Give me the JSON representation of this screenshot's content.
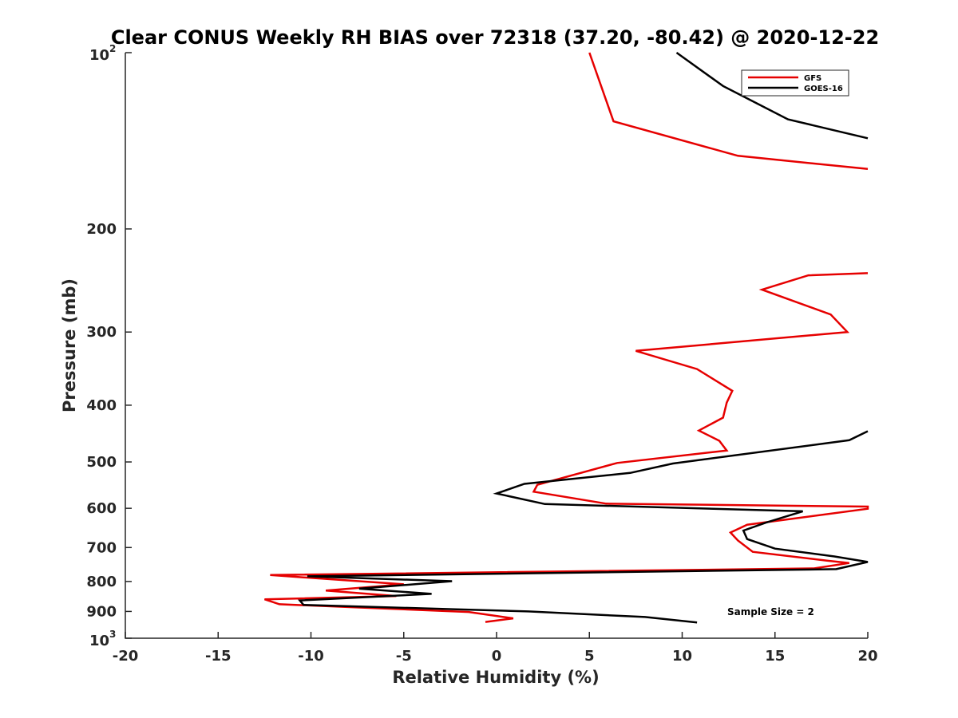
{
  "chart_data": {
    "type": "line",
    "title": "Clear CONUS Weekly RH BIAS over 72318 (37.20, -80.42) @ 2020-12-22",
    "xlabel": "Relative Humidity (%)",
    "ylabel": "Pressure (mb)",
    "xlim": [
      -20,
      20
    ],
    "ylim": [
      100,
      1000
    ],
    "y_scale": "log",
    "y_reversed": true,
    "grid": false,
    "legend_position": "top-right",
    "x_ticks": [
      {
        "value": -20,
        "label": "-20"
      },
      {
        "value": -15,
        "label": "-15"
      },
      {
        "value": -10,
        "label": "-10"
      },
      {
        "value": -5,
        "label": "-5"
      },
      {
        "value": 0,
        "label": "0"
      },
      {
        "value": 5,
        "label": "5"
      },
      {
        "value": 10,
        "label": "10"
      },
      {
        "value": 15,
        "label": "15"
      },
      {
        "value": 20,
        "label": "20"
      }
    ],
    "y_ticks": [
      {
        "value": 100,
        "label": "",
        "base": "10",
        "exp": "2"
      },
      {
        "value": 200,
        "label": "200"
      },
      {
        "value": 300,
        "label": "300"
      },
      {
        "value": 400,
        "label": "400"
      },
      {
        "value": 500,
        "label": "500"
      },
      {
        "value": 600,
        "label": "600"
      },
      {
        "value": 700,
        "label": "700"
      },
      {
        "value": 800,
        "label": "800"
      },
      {
        "value": 900,
        "label": "900"
      },
      {
        "value": 1000,
        "label": "",
        "base": "10",
        "exp": "3"
      }
    ],
    "series": [
      {
        "name": "GFS",
        "color": "#e60000",
        "points": [
          [
            5.0,
            100
          ],
          [
            6.3,
            131
          ],
          [
            13.0,
            150
          ],
          [
            20.0,
            158
          ],
          [
            null,
            200
          ],
          [
            20.0,
            238
          ],
          [
            16.8,
            240
          ],
          [
            14.3,
            254
          ],
          [
            18.0,
            280
          ],
          [
            18.9,
            300
          ],
          [
            7.5,
            323
          ],
          [
            10.8,
            347
          ],
          [
            12.7,
            378
          ],
          [
            12.4,
            396
          ],
          [
            12.2,
            420
          ],
          [
            10.9,
            442
          ],
          [
            12.0,
            460
          ],
          [
            12.4,
            478
          ],
          [
            6.5,
            502
          ],
          [
            2.2,
            547
          ],
          [
            2.0,
            562
          ],
          [
            5.9,
            589
          ],
          [
            20.0,
            596
          ],
          [
            20.0,
            601
          ],
          [
            13.5,
            640
          ],
          [
            12.6,
            660
          ],
          [
            13.0,
            681
          ],
          [
            13.8,
            712
          ],
          [
            17.8,
            737
          ],
          [
            19.0,
            744
          ],
          [
            17.1,
            760
          ],
          [
            -12.2,
            780
          ],
          [
            -5.0,
            809
          ],
          [
            -9.2,
            829
          ],
          [
            -5.4,
            847
          ],
          [
            -12.5,
            858
          ],
          [
            -11.7,
            875
          ],
          [
            -1.5,
            902
          ],
          [
            0.9,
            925
          ],
          [
            -0.6,
            938
          ]
        ]
      },
      {
        "name": "GOES-16",
        "color": "#000000",
        "points": [
          [
            9.7,
            100
          ],
          [
            12.2,
            114
          ],
          [
            15.7,
            130
          ],
          [
            20.0,
            140
          ],
          [
            null,
            200
          ],
          [
            20.0,
            443
          ],
          [
            19.0,
            459
          ],
          [
            9.5,
            503
          ],
          [
            7.2,
            522
          ],
          [
            1.5,
            545
          ],
          [
            0.0,
            566
          ],
          [
            2.6,
            590
          ],
          [
            16.5,
            607
          ],
          [
            14.5,
            635
          ],
          [
            13.3,
            655
          ],
          [
            13.5,
            677
          ],
          [
            15.0,
            703
          ],
          [
            18.2,
            725
          ],
          [
            20.0,
            741
          ],
          [
            18.3,
            762
          ],
          [
            -10.2,
            784
          ],
          [
            -2.4,
            799
          ],
          [
            -7.4,
            823
          ],
          [
            -3.5,
            840
          ],
          [
            -10.6,
            862
          ],
          [
            -10.4,
            877
          ],
          [
            1.7,
            900
          ],
          [
            8.0,
            920
          ],
          [
            10.8,
            940
          ]
        ]
      }
    ],
    "annotation": "Sample Size = 2"
  }
}
